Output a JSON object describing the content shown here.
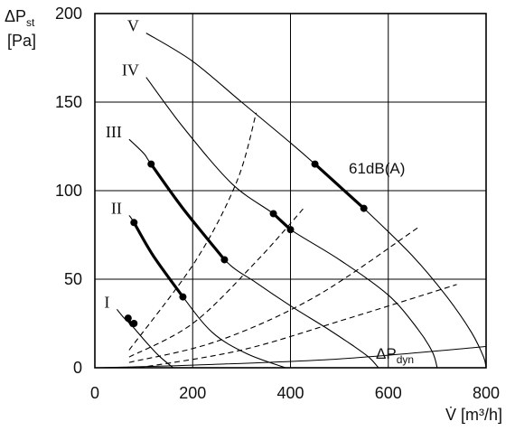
{
  "chart_data": {
    "type": "line",
    "xlabel": "V̇ [m³/h]",
    "ylabel": [
      "ΔP",
      "st",
      "[Pa]"
    ],
    "xlim": [
      0,
      800
    ],
    "ylim": [
      0,
      200
    ],
    "x_ticks": [
      0,
      200,
      400,
      600,
      800
    ],
    "y_ticks": [
      0,
      50,
      100,
      150,
      200
    ],
    "grid": true,
    "series": [
      {
        "name": "I",
        "x": [
          45,
          60,
          75,
          100,
          130,
          160
        ],
        "y": [
          33,
          28,
          24,
          16,
          7,
          0
        ]
      },
      {
        "name": "II",
        "x": [
          70,
          80,
          120,
          180,
          240,
          310,
          390
        ],
        "y": [
          86,
          82,
          63,
          40,
          20,
          8,
          0
        ]
      },
      {
        "name": "III",
        "x": [
          70,
          100,
          115,
          180,
          265,
          330,
          400,
          470,
          525,
          560,
          580
        ],
        "y": [
          129,
          121,
          115,
          90,
          61,
          48,
          35,
          23,
          13,
          6,
          0
        ]
      },
      {
        "name": "IV",
        "x": [
          105,
          180,
          280,
          365,
          400,
          500,
          600,
          660,
          690,
          700
        ],
        "y": [
          164,
          136,
          104,
          87,
          78,
          61,
          41,
          22,
          9,
          0
        ]
      },
      {
        "name": "V",
        "x": [
          105,
          200,
          300,
          400,
          450,
          550,
          650,
          720,
          770,
          795,
          800
        ],
        "y": [
          189,
          173,
          150,
          127,
          115,
          90,
          63,
          40,
          20,
          6,
          0
        ]
      }
    ],
    "highlight_segments": [
      {
        "series": "I",
        "x": [
          68,
          80
        ],
        "y": [
          28,
          25
        ]
      },
      {
        "series": "II",
        "x": [
          80,
          180
        ],
        "y": [
          82,
          40
        ]
      },
      {
        "series": "III",
        "x": [
          115,
          265
        ],
        "y": [
          115,
          61
        ]
      },
      {
        "series": "IV",
        "x": [
          365,
          400
        ],
        "y": [
          87,
          78
        ]
      },
      {
        "series": "V",
        "x": [
          450,
          550
        ],
        "y": [
          115,
          90
        ]
      }
    ],
    "system_lines": [
      {
        "x": [
          70,
          205,
          290,
          330
        ],
        "y": [
          10,
          60,
          105,
          144
        ]
      },
      {
        "x": [
          70,
          200,
          330,
          430
        ],
        "y": [
          6,
          25,
          60,
          91
        ]
      },
      {
        "x": [
          70,
          250,
          450,
          660
        ],
        "y": [
          3,
          15,
          40,
          79
        ]
      },
      {
        "x": [
          90,
          300,
          520,
          740
        ],
        "y": [
          0,
          10,
          28,
          47
        ]
      }
    ],
    "dynamic_pressure": {
      "label": [
        "ΔP",
        "dyn"
      ],
      "x": [
        0,
        200,
        500,
        800
      ],
      "y": [
        0,
        1.5,
        5,
        12
      ]
    },
    "annotations": [
      {
        "text": "61dB(A)",
        "x": 518,
        "y": 110
      }
    ]
  }
}
